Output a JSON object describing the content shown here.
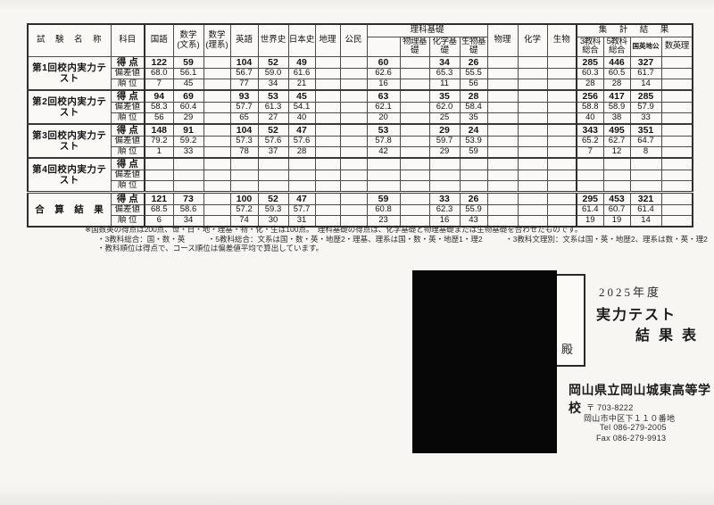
{
  "table": {
    "header": {
      "test_name": "試　験　名　称",
      "subject_label": "科目",
      "subjects": [
        "国語",
        "数学 (文系)",
        "数学 (理系)",
        "英語",
        "世界史",
        "日本史",
        "地理",
        "公民"
      ],
      "rika_label": "理科基礎",
      "rika_subs": [
        "物理基礎",
        "化学基礎",
        "生物基礎"
      ],
      "science": [
        "物理",
        "化学",
        "生物"
      ],
      "summary_label": "集　計　結　果",
      "summary_subs": [
        "3教科総合",
        "5教科総合",
        "国英地公",
        "数英理"
      ]
    },
    "row_labels": [
      "得 点",
      "偏差値",
      "順 位"
    ],
    "groups": [
      {
        "name": "第1回校内実力テスト",
        "rows": [
          [
            "122",
            "59",
            "",
            "104",
            "52",
            "49",
            "",
            "",
            "60",
            "",
            "34",
            "26",
            "",
            "",
            "",
            "285",
            "446",
            "327",
            ""
          ],
          [
            "68.0",
            "56.1",
            "",
            "56.7",
            "59.0",
            "61.6",
            "",
            "",
            "62.6",
            "",
            "65.3",
            "55.5",
            "",
            "",
            "",
            "60.3",
            "60.5",
            "61.7",
            ""
          ],
          [
            "7",
            "45",
            "",
            "77",
            "34",
            "21",
            "",
            "",
            "16",
            "",
            "11",
            "56",
            "",
            "",
            "",
            "28",
            "28",
            "14",
            ""
          ]
        ]
      },
      {
        "name": "第2回校内実力テスト",
        "rows": [
          [
            "94",
            "69",
            "",
            "93",
            "53",
            "45",
            "",
            "",
            "63",
            "",
            "35",
            "28",
            "",
            "",
            "",
            "256",
            "417",
            "285",
            ""
          ],
          [
            "58.3",
            "60.4",
            "",
            "57.7",
            "61.3",
            "54.1",
            "",
            "",
            "62.1",
            "",
            "62.0",
            "58.4",
            "",
            "",
            "",
            "58.8",
            "58.9",
            "57.9",
            ""
          ],
          [
            "56",
            "29",
            "",
            "65",
            "27",
            "40",
            "",
            "",
            "20",
            "",
            "25",
            "35",
            "",
            "",
            "",
            "40",
            "38",
            "33",
            ""
          ]
        ]
      },
      {
        "name": "第3回校内実力テスト",
        "rows": [
          [
            "148",
            "91",
            "",
            "104",
            "52",
            "47",
            "",
            "",
            "53",
            "",
            "29",
            "24",
            "",
            "",
            "",
            "343",
            "495",
            "351",
            ""
          ],
          [
            "79.2",
            "59.2",
            "",
            "57.3",
            "57.6",
            "57.6",
            "",
            "",
            "57.8",
            "",
            "59.7",
            "53.9",
            "",
            "",
            "",
            "65.2",
            "62.7",
            "64.7",
            ""
          ],
          [
            "1",
            "33",
            "",
            "78",
            "37",
            "28",
            "",
            "",
            "42",
            "",
            "29",
            "59",
            "",
            "",
            "",
            "7",
            "12",
            "8",
            ""
          ]
        ]
      },
      {
        "name": "第4回校内実力テスト",
        "rows": [
          [
            "",
            "",
            "",
            "",
            "",
            "",
            "",
            "",
            "",
            "",
            "",
            "",
            "",
            "",
            "",
            "",
            "",
            "",
            ""
          ],
          [
            "",
            "",
            "",
            "",
            "",
            "",
            "",
            "",
            "",
            "",
            "",
            "",
            "",
            "",
            "",
            "",
            "",
            "",
            ""
          ],
          [
            "",
            "",
            "",
            "",
            "",
            "",
            "",
            "",
            "",
            "",
            "",
            "",
            "",
            "",
            "",
            "",
            "",
            "",
            ""
          ]
        ]
      },
      {
        "name": "合　算　結　果",
        "rows": [
          [
            "121",
            "73",
            "",
            "100",
            "52",
            "47",
            "",
            "",
            "59",
            "",
            "33",
            "26",
            "",
            "",
            "",
            "295",
            "453",
            "321",
            ""
          ],
          [
            "68.5",
            "58.6",
            "",
            "57.2",
            "59.3",
            "57.7",
            "",
            "",
            "60.8",
            "",
            "62.3",
            "55.9",
            "",
            "",
            "",
            "61.4",
            "60.7",
            "61.4",
            ""
          ],
          [
            "6",
            "34",
            "",
            "74",
            "30",
            "31",
            "",
            "",
            "23",
            "",
            "16",
            "43",
            "",
            "",
            "",
            "19",
            "19",
            "14",
            ""
          ]
        ]
      }
    ]
  },
  "notes": [
    "※国数英の得点は200点、世・日・地・理基・物・化・生は100点。　理科基礎の得点は、化学基礎と物理基礎または生物基礎を合わせたものです。",
    "・3教科総合：国・数・英　　　・5教科総合：文系は国・数・英・地歴2・理基、理系は国・数・英・地歴1・理2　　　・3教科文理別：文系は国・英・地歴2、理系は数・英・理2",
    "・教科順位は得点で、コース順位は偏差値平均で算出しています。"
  ],
  "document": {
    "title_year": "2025年度",
    "title_main": "実力テスト",
    "title_sub": "結 果 表",
    "addressee_suffix": "殿",
    "school": {
      "name": "岡山県立岡山城東高等学校",
      "postal": "〒 703-8222",
      "address": "岡山市中区下１１０番地",
      "tel": "Tel 086-279-2005",
      "fax": "Fax 086-279-9913"
    }
  }
}
